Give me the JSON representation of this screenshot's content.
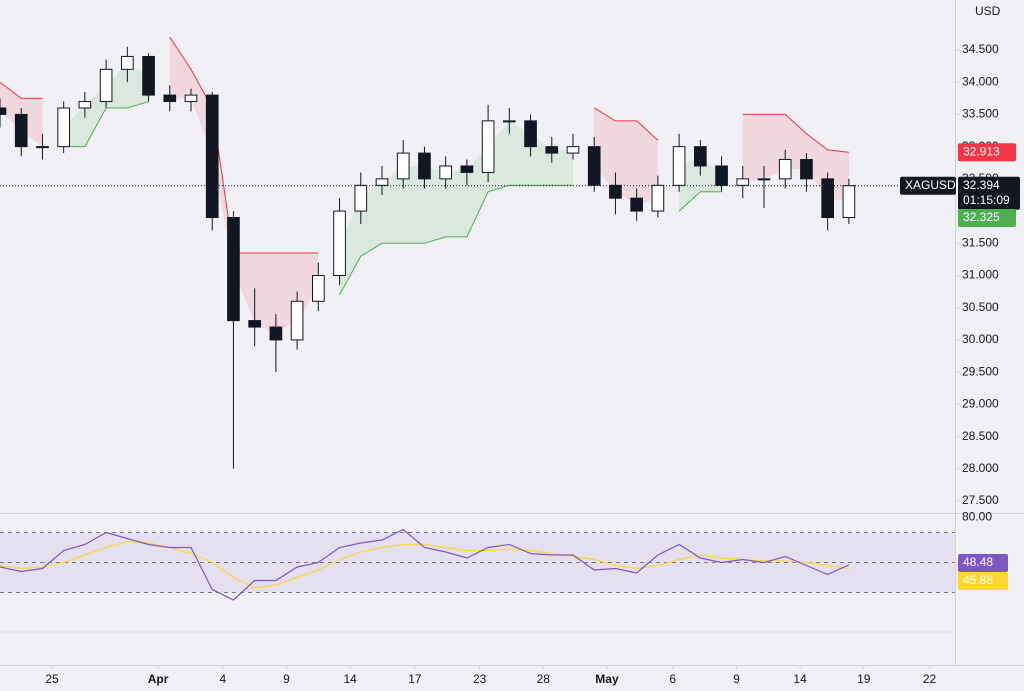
{
  "chart_data": {
    "type": "candlestick",
    "symbol": "XAGUSD",
    "currency": "USD",
    "countdown": "01:15:09",
    "marker_price": 32.325,
    "up_color": "#ffffff",
    "down_color": "#131722",
    "x": [
      0,
      1,
      2,
      3,
      4,
      5,
      6,
      7,
      8,
      9,
      10,
      11,
      12,
      13,
      14,
      15,
      16,
      17,
      18,
      19,
      20,
      21,
      22,
      23,
      24,
      25,
      26,
      27,
      28,
      29,
      30,
      31,
      32,
      33,
      34,
      35,
      36,
      37,
      38,
      39,
      40
    ],
    "open": [
      33.6,
      33.5,
      33.0,
      33.0,
      33.6,
      33.7,
      34.2,
      34.4,
      33.8,
      33.7,
      33.8,
      31.9,
      30.3,
      30.2,
      30.0,
      30.6,
      31.0,
      32.0,
      32.4,
      32.5,
      32.9,
      32.5,
      32.7,
      32.6,
      33.4,
      33.4,
      33.0,
      32.9,
      33.0,
      32.4,
      32.2,
      32.0,
      32.4,
      33.0,
      32.7,
      32.4,
      32.5,
      32.5,
      32.8,
      32.5,
      31.9
    ],
    "high": [
      33.75,
      33.6,
      33.2,
      33.7,
      33.85,
      34.35,
      34.55,
      34.45,
      33.95,
      33.9,
      33.85,
      32.0,
      30.8,
      30.4,
      30.75,
      31.2,
      32.2,
      32.6,
      32.7,
      33.1,
      33.0,
      32.85,
      32.8,
      33.65,
      33.6,
      33.5,
      33.15,
      33.2,
      33.15,
      32.6,
      32.35,
      32.55,
      33.2,
      33.1,
      32.85,
      32.7,
      32.7,
      32.95,
      32.9,
      32.6,
      32.5
    ],
    "low": [
      33.3,
      32.85,
      32.8,
      32.9,
      33.45,
      33.6,
      34.0,
      33.7,
      33.55,
      33.55,
      31.7,
      28.0,
      29.9,
      29.5,
      29.85,
      30.45,
      30.85,
      31.8,
      32.25,
      32.35,
      32.35,
      32.35,
      32.4,
      32.45,
      33.2,
      32.85,
      32.75,
      32.8,
      32.3,
      31.95,
      31.85,
      31.9,
      32.3,
      32.55,
      32.3,
      32.2,
      32.05,
      32.35,
      32.3,
      31.7,
      31.8
    ],
    "close": [
      33.5,
      33.0,
      33.0,
      33.6,
      33.7,
      34.2,
      34.4,
      33.8,
      33.7,
      33.8,
      31.9,
      30.3,
      30.2,
      30.0,
      30.6,
      31.0,
      32.0,
      32.4,
      32.5,
      32.9,
      32.5,
      32.7,
      32.6,
      33.4,
      33.4,
      33.0,
      32.9,
      33.0,
      32.4,
      32.2,
      32.0,
      32.4,
      33.0,
      32.7,
      32.4,
      32.5,
      32.5,
      32.8,
      32.5,
      31.9,
      32.394
    ],
    "upper": {
      "color": "#f23645",
      "values": [
        34.0,
        33.75,
        33.75,
        null,
        null,
        null,
        null,
        null,
        34.7,
        34.2,
        33.6,
        31.35,
        31.35,
        31.35,
        31.35,
        31.35,
        null,
        null,
        null,
        null,
        null,
        null,
        null,
        null,
        null,
        null,
        null,
        null,
        33.6,
        33.4,
        33.4,
        33.1,
        null,
        null,
        null,
        33.5,
        33.5,
        33.5,
        33.2,
        32.95,
        32.913
      ]
    },
    "lower": {
      "color": "#4caf50",
      "values": [
        null,
        null,
        null,
        33.0,
        33.0,
        33.6,
        33.6,
        33.7,
        null,
        null,
        null,
        null,
        null,
        null,
        null,
        null,
        30.7,
        31.3,
        31.5,
        31.5,
        31.5,
        31.6,
        31.6,
        32.3,
        32.4,
        32.4,
        32.4,
        32.4,
        null,
        null,
        null,
        null,
        32.0,
        32.3,
        32.3,
        null,
        null,
        null,
        null,
        null,
        null
      ]
    },
    "xlim": [
      0,
      45
    ],
    "xticks": [
      {
        "value": 2.45,
        "label": "25"
      },
      {
        "value": 7.45,
        "label": "Apr"
      },
      {
        "value": 10.5,
        "label": "4"
      },
      {
        "value": 13.5,
        "label": "9"
      },
      {
        "value": 16.5,
        "label": "14"
      },
      {
        "value": 19.55,
        "label": "17"
      },
      {
        "value": 22.6,
        "label": "23"
      },
      {
        "value": 25.6,
        "label": "28"
      },
      {
        "value": 28.6,
        "label": "May"
      },
      {
        "value": 31.7,
        "label": "6"
      },
      {
        "value": 34.7,
        "label": "9"
      },
      {
        "value": 37.7,
        "label": "14"
      },
      {
        "value": 40.7,
        "label": "19"
      },
      {
        "value": 43.8,
        "label": "22"
      }
    ],
    "ylim": [
      27.314,
      35.276
    ],
    "yticks": [
      {
        "value": 27.5,
        "label": "27.500"
      },
      {
        "value": 28,
        "label": "28.000"
      },
      {
        "value": 28.5,
        "label": "28.500"
      },
      {
        "value": 29,
        "label": "29.000"
      },
      {
        "value": 29.5,
        "label": "29.500"
      },
      {
        "value": 30,
        "label": "30.000"
      },
      {
        "value": 30.5,
        "label": "30.500"
      },
      {
        "value": 31,
        "label": "31.000"
      },
      {
        "value": 31.5,
        "label": "31.500"
      },
      {
        "value": 32,
        "label": "32.000"
      },
      {
        "value": 32.5,
        "label": "32.500"
      },
      {
        "value": 33,
        "label": "33.000"
      },
      {
        "value": 33.5,
        "label": "33.500"
      },
      {
        "value": 34,
        "label": "34.000"
      },
      {
        "value": 34.5,
        "label": "34.500"
      }
    ],
    "rsi": {
      "color": "#7e57c2",
      "values": [
        47,
        44,
        46,
        58,
        62,
        70,
        66,
        62,
        60,
        60,
        32,
        25,
        38,
        38,
        47,
        50,
        60,
        63,
        65,
        72,
        60,
        57,
        53,
        60,
        62,
        56,
        55,
        55,
        45,
        46,
        43,
        55,
        62,
        53,
        50,
        52,
        50,
        54,
        48,
        42,
        48.48
      ],
      "value_labels": [
        null,
        null,
        null,
        null,
        null,
        null,
        null,
        null,
        null,
        null,
        null,
        null,
        null,
        null,
        null,
        null,
        null,
        null,
        null,
        null,
        null,
        null,
        null,
        null,
        null,
        null,
        null,
        null,
        null,
        null,
        null,
        null,
        null,
        null,
        null,
        null,
        null,
        null,
        null,
        null,
        "48.48"
      ],
      "ma": {
        "color": "#fdd835",
        "values": [
          48,
          46,
          47,
          50,
          55,
          60,
          64,
          63,
          60,
          56,
          50,
          40,
          33,
          35,
          40,
          45,
          52,
          57,
          60,
          62,
          62,
          60,
          58,
          58,
          59,
          58,
          56,
          54,
          52,
          48,
          46,
          48,
          52,
          55,
          53,
          52,
          51,
          51,
          50,
          48,
          45.88
        ],
        "value_labels": [
          null,
          null,
          null,
          null,
          null,
          null,
          null,
          null,
          null,
          null,
          null,
          null,
          null,
          null,
          null,
          null,
          null,
          null,
          null,
          null,
          null,
          null,
          null,
          null,
          null,
          null,
          null,
          null,
          null,
          null,
          null,
          null,
          null,
          null,
          null,
          null,
          null,
          null,
          null,
          null,
          "45.88"
        ]
      },
      "levels": [
        70,
        50,
        30
      ],
      "ylim": [
        -15,
        83
      ],
      "yticks": [
        {
          "value": 80,
          "label": "80.00"
        }
      ]
    }
  }
}
